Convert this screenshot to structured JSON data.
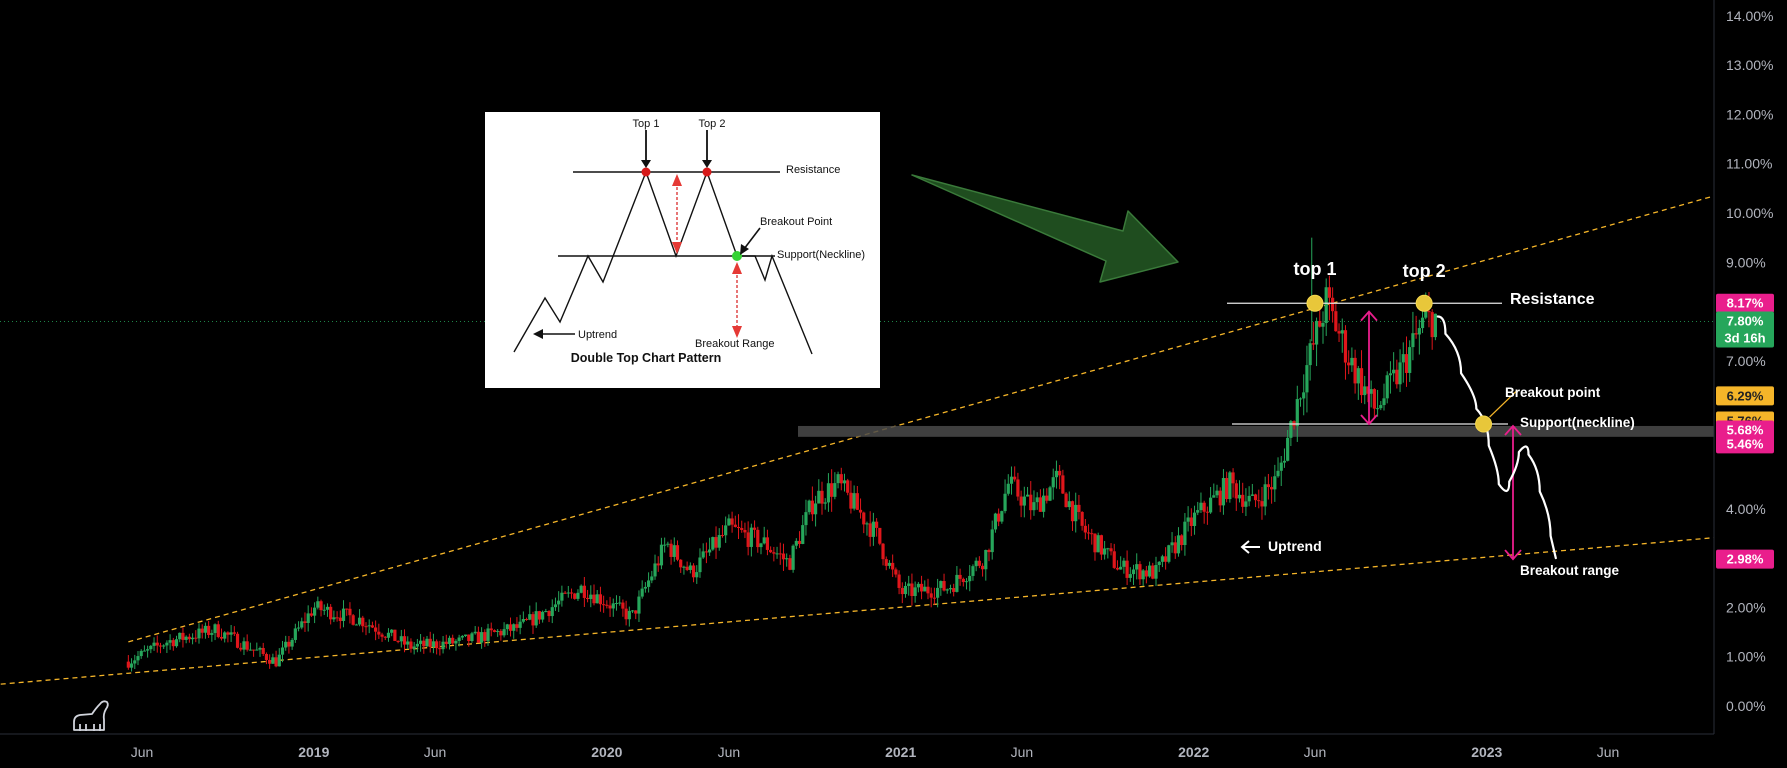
{
  "chart_data": {
    "type": "candlestick",
    "x_ticks": [
      {
        "label": "Jun",
        "date": "2018-06-01",
        "bold": false
      },
      {
        "label": "2019",
        "date": "2019-01-01",
        "bold": true
      },
      {
        "label": "Jun",
        "date": "2019-06-01",
        "bold": false
      },
      {
        "label": "2020",
        "date": "2020-01-01",
        "bold": true
      },
      {
        "label": "Jun",
        "date": "2020-06-01",
        "bold": false
      },
      {
        "label": "2021",
        "date": "2021-01-01",
        "bold": true
      },
      {
        "label": "Jun",
        "date": "2021-06-01",
        "bold": false
      },
      {
        "label": "2022",
        "date": "2022-01-01",
        "bold": true
      },
      {
        "label": "Jun",
        "date": "2022-06-01",
        "bold": false
      },
      {
        "label": "2023",
        "date": "2023-01-01",
        "bold": true
      },
      {
        "label": "Jun",
        "date": "2023-06-01",
        "bold": false
      }
    ],
    "y_ticks": [
      "0.00%",
      "1.00%",
      "2.00%",
      "3.00%",
      "4.00%",
      "7.00%",
      "8.00%",
      "9.00%",
      "10.00%",
      "11.00%",
      "12.00%",
      "13.00%",
      "14.00%"
    ],
    "y_range": [
      0,
      14
    ],
    "price_path": [
      [
        "2018-05-15",
        0.9
      ],
      [
        "2018-07-01",
        1.3
      ],
      [
        "2018-09-01",
        1.55
      ],
      [
        "2018-11-15",
        0.9
      ],
      [
        "2019-01-01",
        2.0
      ],
      [
        "2019-03-01",
        1.75
      ],
      [
        "2019-05-01",
        1.2
      ],
      [
        "2019-07-01",
        1.3
      ],
      [
        "2019-09-15",
        1.6
      ],
      [
        "2019-12-01",
        2.4
      ],
      [
        "2020-02-01",
        1.8
      ],
      [
        "2020-03-15",
        3.3
      ],
      [
        "2020-04-15",
        2.7
      ],
      [
        "2020-06-01",
        3.6
      ],
      [
        "2020-07-15",
        3.3
      ],
      [
        "2020-08-15",
        2.9
      ],
      [
        "2020-09-15",
        4.2
      ],
      [
        "2020-10-15",
        4.5
      ],
      [
        "2020-12-01",
        3.5
      ],
      [
        "2021-01-01",
        2.3
      ],
      [
        "2021-03-01",
        2.4
      ],
      [
        "2021-04-15",
        3.0
      ],
      [
        "2021-05-15",
        4.5
      ],
      [
        "2021-06-15",
        4.0
      ],
      [
        "2021-07-15",
        4.6
      ],
      [
        "2021-08-15",
        3.6
      ],
      [
        "2021-10-01",
        2.8
      ],
      [
        "2021-11-15",
        2.7
      ],
      [
        "2022-01-01",
        3.8
      ],
      [
        "2022-02-15",
        4.5
      ],
      [
        "2022-03-15",
        4.1
      ],
      [
        "2022-04-15",
        4.6
      ],
      [
        "2022-05-15",
        6.5
      ],
      [
        "2022-06-15",
        8.2
      ],
      [
        "2022-07-15",
        7.0
      ],
      [
        "2022-08-15",
        6.0
      ],
      [
        "2022-09-15",
        6.8
      ],
      [
        "2022-10-15",
        7.8
      ],
      [
        "2022-11-01",
        7.9
      ]
    ],
    "wedge_upper": [
      [
        "2018-05-15",
        1.3
      ],
      [
        "2023-10-01",
        10.3
      ]
    ],
    "wedge_lower": [
      [
        "2017-10-01",
        0.35
      ],
      [
        "2023-10-01",
        3.4
      ]
    ],
    "resistance_level": 8.17,
    "neckline_level": 5.76,
    "support_zone": [
      5.46,
      5.68
    ],
    "projection": [
      [
        "2022-11-01",
        7.9
      ],
      [
        "2022-11-20",
        7.2
      ],
      [
        "2022-12-10",
        6.3
      ],
      [
        "2022-12-28",
        5.76
      ],
      [
        "2023-01-10",
        4.8
      ],
      [
        "2023-01-22",
        4.2
      ],
      [
        "2023-02-05",
        4.9
      ],
      [
        "2023-02-15",
        5.4
      ],
      [
        "2023-03-01",
        4.8
      ],
      [
        "2023-03-15",
        3.9
      ],
      [
        "2023-03-28",
        3.0
      ]
    ],
    "breakout_range": [
      2.98,
      5.68
    ],
    "markers": [
      {
        "label": "top 1",
        "date": "2022-06-01",
        "value": 8.17
      },
      {
        "label": "top 2",
        "date": "2022-10-15",
        "value": 8.17
      },
      {
        "label": "Breakout point",
        "date": "2022-12-28",
        "value": 5.76
      }
    ],
    "price_labels": [
      {
        "text": "8.17%",
        "value": 8.17,
        "color": "#e91e8c",
        "text_color": "#ffffff"
      },
      {
        "text": "7.80%",
        "sub": "3d 16h",
        "value": 7.8,
        "color": "#26a65b",
        "text_color": "#ffffff"
      },
      {
        "text": "6.29%",
        "value": 6.29,
        "color": "#f5b529",
        "text_color": "#222222"
      },
      {
        "text": "5.76%",
        "value": 5.76,
        "color": "#f5b529",
        "text_color": "#222222"
      },
      {
        "text": "5.68%",
        "value": 5.68,
        "color": "#e91e8c",
        "text_color": "#ffffff"
      },
      {
        "text": "5.46%",
        "value": 5.46,
        "color": "#e91e8c",
        "text_color": "#ffffff"
      },
      {
        "text": "2.98%",
        "value": 2.98,
        "color": "#e91e8c",
        "text_color": "#ffffff"
      }
    ],
    "annotations": {
      "top1": "top 1",
      "top2": "top 2",
      "resistance": "Resistance",
      "breakout_point": "Breakout point",
      "support": "Support(neckline)",
      "uptrend": "Uptrend",
      "breakout_range": "Breakout range"
    },
    "colors": {
      "up": "#26a65b",
      "down": "#e0161b",
      "wedge": "#f5b529",
      "zone": "#4a4a4a",
      "arrow": "#1f4d1f"
    }
  },
  "inset": {
    "title": "Double Top Chart Pattern",
    "top1": "Top 1",
    "top2": "Top 2",
    "resistance": "Resistance",
    "breakout_point": "Breakout Point",
    "support": "Support(Neckline)",
    "uptrend": "Uptrend",
    "breakout_range": "Breakout Range"
  }
}
